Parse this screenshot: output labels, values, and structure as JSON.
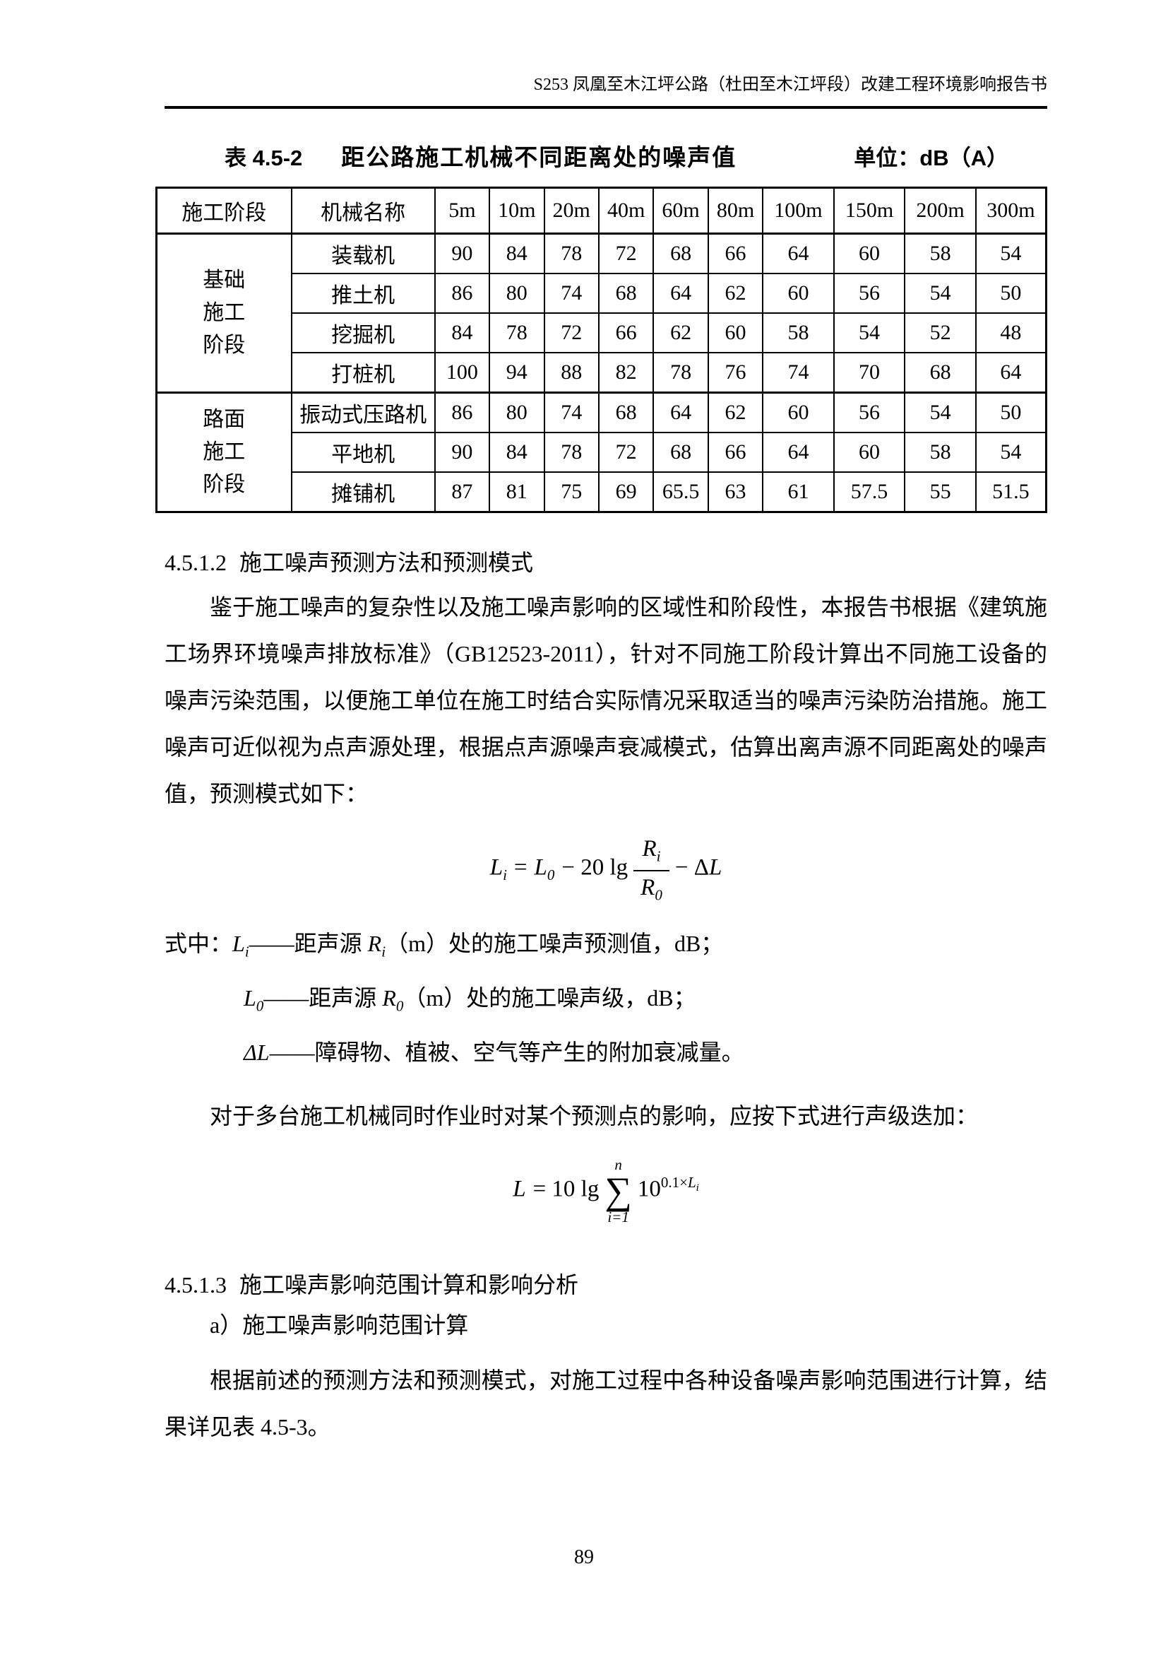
{
  "header": {
    "title": "S253 凤凰至木江坪公路（杜田至木江坪段）改建工程环境影响报告书"
  },
  "caption": {
    "label": "表 4.5-2",
    "title": "距公路施工机械不同距离处的噪声值",
    "unit": "单位：dB（A）"
  },
  "table": {
    "columns": [
      "施工阶段",
      "机械名称",
      "5m",
      "10m",
      "20m",
      "40m",
      "60m",
      "80m",
      "100m",
      "150m",
      "200m",
      "300m"
    ],
    "groups": [
      {
        "stage": "基础施工阶段",
        "rows": [
          {
            "machine": "装载机",
            "values": [
              "90",
              "84",
              "78",
              "72",
              "68",
              "66",
              "64",
              "60",
              "58",
              "54"
            ]
          },
          {
            "machine": "推土机",
            "values": [
              "86",
              "80",
              "74",
              "68",
              "64",
              "62",
              "60",
              "56",
              "54",
              "50"
            ]
          },
          {
            "machine": "挖掘机",
            "values": [
              "84",
              "78",
              "72",
              "66",
              "62",
              "60",
              "58",
              "54",
              "52",
              "48"
            ]
          },
          {
            "machine": "打桩机",
            "values": [
              "100",
              "94",
              "88",
              "82",
              "78",
              "76",
              "74",
              "70",
              "68",
              "64"
            ]
          }
        ]
      },
      {
        "stage": "路面施工阶段",
        "rows": [
          {
            "machine": "振动式压路机",
            "values": [
              "86",
              "80",
              "74",
              "68",
              "64",
              "62",
              "60",
              "56",
              "54",
              "50"
            ]
          },
          {
            "machine": "平地机",
            "values": [
              "90",
              "84",
              "78",
              "72",
              "68",
              "66",
              "64",
              "60",
              "58",
              "54"
            ]
          },
          {
            "machine": "摊铺机",
            "values": [
              "87",
              "81",
              "75",
              "69",
              "65.5",
              "63",
              "61",
              "57.5",
              "55",
              "51.5"
            ]
          }
        ]
      }
    ]
  },
  "s4512": {
    "heading_num": "4.5.1.2",
    "heading_text": "施工噪声预测方法和预测模式",
    "p1": "鉴于施工噪声的复杂性以及施工噪声影响的区域性和阶段性，本报告书根据《建筑施工场界环境噪声排放标准》（GB12523-2011），针对不同施工阶段计算出不同施工设备的噪声污染范围，以便施工单位在施工时结合实际情况采取适当的噪声污染防治措施。施工噪声可近似视为点声源处理，根据点声源噪声衰减模式，估算出离声源不同距离处的噪声值，预测模式如下："
  },
  "formula1": {
    "lhs": "L",
    "lhs_sub": "i",
    "eq": "=",
    "l0": "L",
    "l0_sub": "0",
    "op": "− 20 lg",
    "num": "R",
    "num_sub": "i",
    "den": "R",
    "den_sub": "0",
    "tail_op": "− Δ",
    "tail_var": "L"
  },
  "notes": [
    {
      "prefix": "式中：",
      "v": "L",
      "vs": "i",
      "mid": "——距声源 ",
      "r": "R",
      "rs": "i",
      "tail": "（m）处的施工噪声预测值，dB；"
    },
    {
      "prefix": "",
      "v": "L",
      "vs": "0",
      "mid": "——距声源 ",
      "r": "R",
      "rs": "0",
      "tail": "（m）处的施工噪声级，dB；"
    },
    {
      "prefix": "",
      "v": "ΔL",
      "vs": "",
      "mid": "——障碍物、植被、空气等产生的附加衰减量。",
      "r": "",
      "rs": "",
      "tail": ""
    }
  ],
  "p2": "对于多台施工机械同时作业时对某个预测点的影响，应按下式进行声级迭加：",
  "formula2": {
    "lhs": "L",
    "eq": "= 10 lg",
    "sigma": "∑",
    "upper": "n",
    "lower": "i=1",
    "base": "10",
    "exp": "0.1×",
    "exp_var": "L",
    "exp_sub": "i"
  },
  "s4513": {
    "heading_num": "4.5.1.3",
    "heading_text": "施工噪声影响范围计算和影响分析",
    "item_a": "a）施工噪声影响范围计算",
    "p": "根据前述的预测方法和预测模式，对施工过程中各种设备噪声影响范围进行计算，结果详见表 4.5-3。"
  },
  "page_number": "89"
}
